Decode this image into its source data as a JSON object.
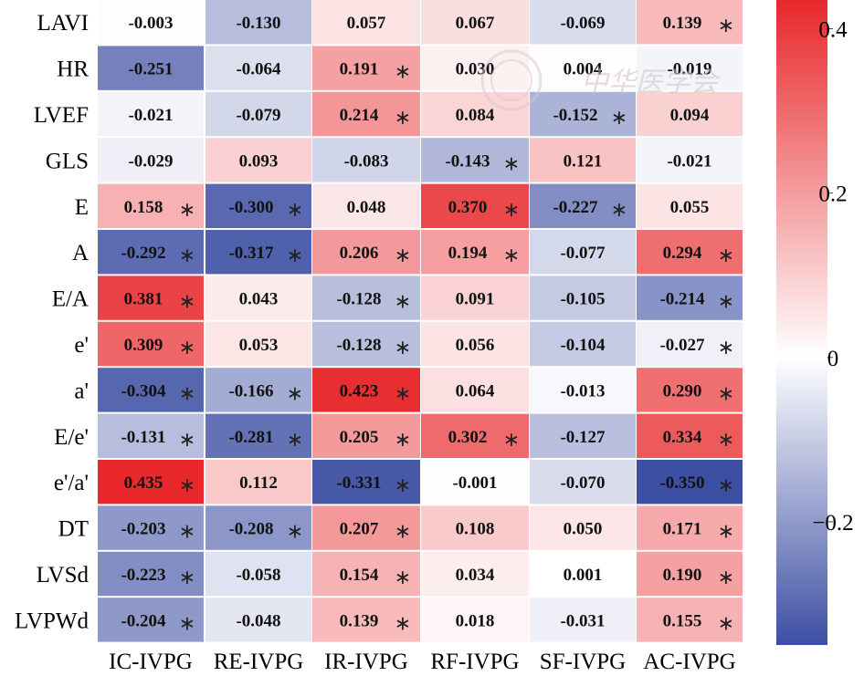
{
  "chart_data": {
    "type": "heatmap",
    "rows": [
      "LAVI",
      "HR",
      "LVEF",
      "GLS",
      "E",
      "A",
      "E/A",
      "e'",
      "a'",
      "E/e'",
      "e'/a'",
      "DT",
      "LVSd",
      "LVPWd"
    ],
    "columns": [
      "IC-IVPG",
      "RE-IVPG",
      "IR-IVPG",
      "RF-IVPG",
      "SF-IVPG",
      "AC-IVPG"
    ],
    "values": [
      [
        -0.003,
        -0.13,
        0.057,
        0.067,
        -0.069,
        0.139
      ],
      [
        -0.251,
        -0.064,
        0.191,
        0.03,
        0.004,
        -0.019
      ],
      [
        -0.021,
        -0.079,
        0.214,
        0.084,
        -0.152,
        0.094
      ],
      [
        -0.029,
        0.093,
        -0.083,
        -0.143,
        0.121,
        -0.021
      ],
      [
        0.158,
        -0.3,
        0.048,
        0.37,
        -0.227,
        0.055
      ],
      [
        -0.292,
        -0.317,
        0.206,
        0.194,
        -0.077,
        0.294
      ],
      [
        0.381,
        0.043,
        -0.128,
        0.091,
        -0.105,
        -0.214
      ],
      [
        0.309,
        0.053,
        -0.128,
        0.056,
        -0.104,
        -0.027
      ],
      [
        -0.304,
        -0.166,
        0.423,
        0.064,
        -0.013,
        0.29
      ],
      [
        -0.131,
        -0.281,
        0.205,
        0.302,
        -0.127,
        0.334
      ],
      [
        0.435,
        0.112,
        -0.331,
        -0.001,
        -0.07,
        -0.35
      ],
      [
        -0.203,
        -0.208,
        0.207,
        0.108,
        0.05,
        0.171
      ],
      [
        -0.223,
        -0.058,
        0.154,
        0.034,
        0.001,
        0.19
      ],
      [
        -0.204,
        -0.048,
        0.139,
        0.018,
        -0.031,
        0.155
      ]
    ],
    "labels": [
      [
        "-0.003",
        "-0.130",
        "0.057",
        "0.067",
        "-0.069",
        "0.139"
      ],
      [
        "-0.251",
        "-0.064",
        "0.191",
        "0.030",
        "0.004",
        "-0.019"
      ],
      [
        "-0.021",
        "-0.079",
        "0.214",
        "0.084",
        "-0.152",
        "0.094"
      ],
      [
        "-0.029",
        "0.093",
        "-0.083",
        "-0.143",
        "0.121",
        "-0.021"
      ],
      [
        "0.158",
        "-0.300",
        "0.048",
        "0.370",
        "-0.227",
        "0.055"
      ],
      [
        "-0.292",
        "-0.317",
        "0.206",
        "0.194",
        "-0.077",
        "0.294"
      ],
      [
        "0.381",
        "0.043",
        "-0.128",
        "0.091",
        "-0.105",
        "-0.214"
      ],
      [
        "0.309",
        "0.053",
        "-0.128",
        "0.056",
        "-0.104",
        "-0.027"
      ],
      [
        "-0.304",
        "-0.166",
        "0.423",
        "0.064",
        "-0.013",
        "0.290"
      ],
      [
        "-0.131",
        "-0.281",
        "0.205",
        "0.302",
        "-0.127",
        "0.334"
      ],
      [
        "0.435",
        "0.112",
        "-0.331",
        "-0.001",
        "-0.070",
        "-0.350"
      ],
      [
        "-0.203",
        "-0.208",
        "0.207",
        "0.108",
        "0.050",
        "0.171"
      ],
      [
        "-0.223",
        "-0.058",
        "0.154",
        "0.034",
        "0.001",
        "0.190"
      ],
      [
        "-0.204",
        "-0.048",
        "0.139",
        "0.018",
        "-0.031",
        "0.155"
      ]
    ],
    "significant": [
      [
        false,
        false,
        false,
        false,
        false,
        true
      ],
      [
        false,
        false,
        true,
        false,
        false,
        false
      ],
      [
        false,
        false,
        true,
        false,
        true,
        false
      ],
      [
        false,
        false,
        false,
        true,
        false,
        false
      ],
      [
        true,
        true,
        false,
        true,
        true,
        false
      ],
      [
        true,
        true,
        true,
        true,
        false,
        true
      ],
      [
        true,
        false,
        true,
        false,
        false,
        true
      ],
      [
        true,
        false,
        true,
        false,
        false,
        true
      ],
      [
        true,
        true,
        true,
        false,
        false,
        true
      ],
      [
        true,
        true,
        true,
        true,
        false,
        true
      ],
      [
        true,
        false,
        true,
        false,
        false,
        true
      ],
      [
        true,
        true,
        true,
        false,
        false,
        true
      ],
      [
        true,
        false,
        true,
        false,
        false,
        true
      ],
      [
        true,
        false,
        true,
        false,
        false,
        true
      ]
    ],
    "significance_marker": "∗",
    "colorbar": {
      "min": -0.35,
      "max": 0.435,
      "ticks": [
        0.4,
        0.2,
        0,
        -0.2
      ],
      "tick_labels": [
        "0.4",
        "0.2",
        "0",
        "−0.2"
      ],
      "colors": {
        "negative": "#3d4fa3",
        "neutral": "#ffffff",
        "positive": "#e8282b"
      },
      "placement": "right"
    }
  },
  "watermark_text": "中华医学会"
}
